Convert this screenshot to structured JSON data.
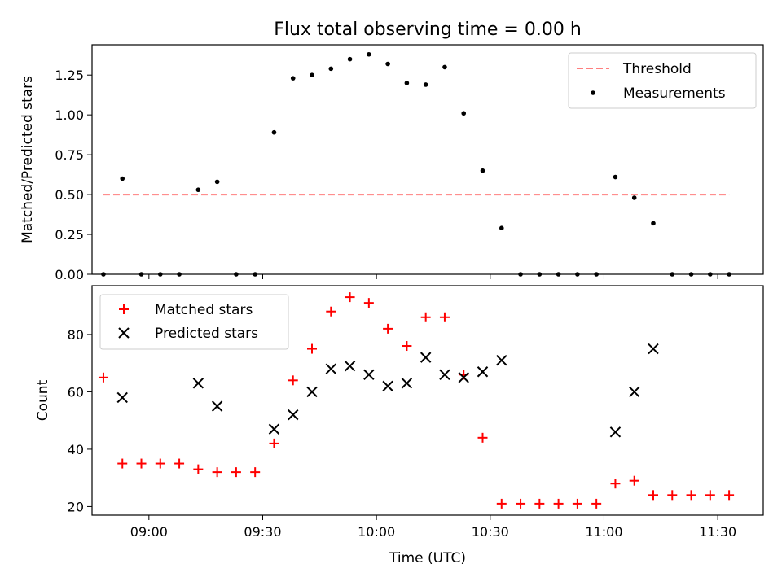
{
  "title": "Flux total observing time = 0.00 h",
  "colors": {
    "threshold": "#ff7f7f",
    "measurements": "#000000",
    "matched": "#ff0000",
    "predicted": "#000000"
  },
  "chart_data": [
    {
      "type": "scatter",
      "title": "Flux total observing time = 0.00 h",
      "xlabel": "",
      "ylabel": "Matched/Predicted stars",
      "xlim": [
        "08:45",
        "11:42"
      ],
      "ylim": [
        0,
        1.44
      ],
      "yticks": [
        0.0,
        0.25,
        0.5,
        0.75,
        1.0,
        1.25
      ],
      "ytick_labels": [
        "0.00",
        "0.25",
        "0.50",
        "0.75",
        "1.00",
        "1.25"
      ],
      "xticks": [
        "09:00",
        "09:30",
        "10:00",
        "10:30",
        "11:00",
        "11:30"
      ],
      "xtick_labels_shown": false,
      "grid": false,
      "legend_position": "top-right",
      "threshold": {
        "name": "Threshold",
        "x": [
          "08:48",
          "11:33"
        ],
        "y": 0.5,
        "style": "dashed"
      },
      "series": [
        {
          "name": "Measurements",
          "marker": "dot",
          "x": [
            "08:48",
            "08:53",
            "08:58",
            "09:03",
            "09:08",
            "09:13",
            "09:18",
            "09:23",
            "09:28",
            "09:33",
            "09:38",
            "09:43",
            "09:48",
            "09:53",
            "09:58",
            "10:03",
            "10:08",
            "10:13",
            "10:18",
            "10:23",
            "10:28",
            "10:33",
            "10:38",
            "10:43",
            "10:48",
            "10:53",
            "10:58",
            "11:03",
            "11:08",
            "11:13",
            "11:18",
            "11:23",
            "11:28",
            "11:33"
          ],
          "y": [
            0.0,
            0.6,
            0.0,
            0.0,
            0.0,
            0.53,
            0.58,
            0.0,
            0.0,
            0.89,
            1.23,
            1.25,
            1.29,
            1.35,
            1.38,
            1.32,
            1.2,
            1.19,
            1.3,
            1.01,
            0.65,
            0.29,
            0.0,
            0.0,
            0.0,
            0.0,
            0.0,
            0.61,
            0.48,
            0.32,
            0.0,
            0.0,
            0.0,
            0.0
          ]
        }
      ]
    },
    {
      "type": "scatter",
      "title": "",
      "xlabel": "Time (UTC)",
      "ylabel": "Count",
      "xlim": [
        "08:45",
        "11:42"
      ],
      "ylim": [
        17,
        97
      ],
      "yticks": [
        20,
        40,
        60,
        80
      ],
      "ytick_labels": [
        "20",
        "40",
        "60",
        "80"
      ],
      "xticks": [
        "09:00",
        "09:30",
        "10:00",
        "10:30",
        "11:00",
        "11:30"
      ],
      "xtick_labels": [
        "09:00",
        "09:30",
        "10:00",
        "10:30",
        "11:00",
        "11:30"
      ],
      "grid": false,
      "legend_position": "top-left",
      "series": [
        {
          "name": "Matched stars",
          "marker": "plus",
          "x": [
            "08:48",
            "08:53",
            "08:58",
            "09:03",
            "09:08",
            "09:13",
            "09:18",
            "09:23",
            "09:28",
            "09:33",
            "09:38",
            "09:43",
            "09:48",
            "09:53",
            "09:58",
            "10:03",
            "10:08",
            "10:13",
            "10:18",
            "10:23",
            "10:28",
            "10:33",
            "10:38",
            "10:43",
            "10:48",
            "10:53",
            "10:58",
            "11:03",
            "11:08",
            "11:13",
            "11:18",
            "11:23",
            "11:28",
            "11:33"
          ],
          "y": [
            65,
            35,
            35,
            35,
            35,
            33,
            32,
            32,
            32,
            42,
            64,
            75,
            88,
            93,
            91,
            82,
            76,
            86,
            86,
            66,
            44,
            21,
            21,
            21,
            21,
            21,
            21,
            28,
            29,
            24,
            24,
            24,
            24,
            24
          ]
        },
        {
          "name": "Predicted stars",
          "marker": "x",
          "x": [
            "08:53",
            "09:13",
            "09:18",
            "09:33",
            "09:38",
            "09:43",
            "09:48",
            "09:53",
            "09:58",
            "10:03",
            "10:08",
            "10:13",
            "10:18",
            "10:23",
            "10:28",
            "10:33",
            "11:03",
            "11:08",
            "11:13"
          ],
          "y": [
            58,
            63,
            55,
            47,
            52,
            60,
            68,
            69,
            66,
            62,
            63,
            72,
            66,
            65,
            67,
            71,
            46,
            60,
            75
          ]
        }
      ]
    }
  ]
}
